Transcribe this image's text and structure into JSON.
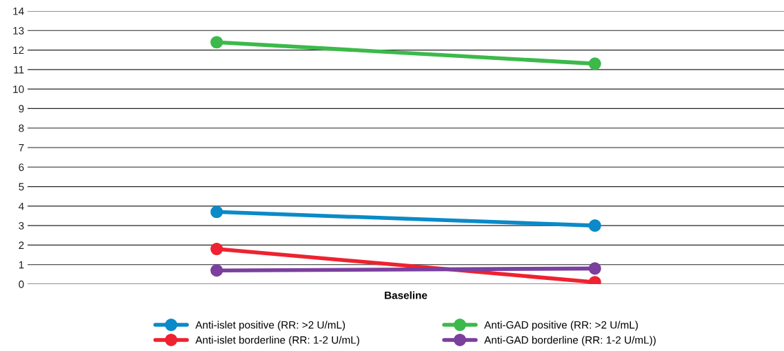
{
  "chart_data": {
    "type": "line",
    "xlabel": "Baseline",
    "categories": [
      null,
      null
    ],
    "series": [
      {
        "name": "Anti-islet positive (RR: >2 U/mL)",
        "color": "#0a8ac8",
        "values": [
          3.7,
          3.0
        ]
      },
      {
        "name": "Anti-islet borderline (RR: 1-2 U/mL)",
        "color": "#ee2230",
        "values": [
          1.8,
          0.1
        ]
      },
      {
        "name": "Anti-GAD positive (RR: >2 U/mL)",
        "color": "#3cb94a",
        "values": [
          12.4,
          11.3
        ]
      },
      {
        "name": "Anti-GAD borderline (RR: 1-2 U/mL))",
        "color": "#7b3f9e",
        "values": [
          0.7,
          0.8
        ]
      }
    ],
    "ylim": [
      0,
      14
    ],
    "yticks": [
      0,
      1,
      2,
      3,
      4,
      5,
      6,
      7,
      8,
      9,
      10,
      11,
      12,
      13,
      14
    ],
    "grid": "y",
    "legend": "bottom",
    "marker": "circle",
    "line_style": "solid"
  }
}
